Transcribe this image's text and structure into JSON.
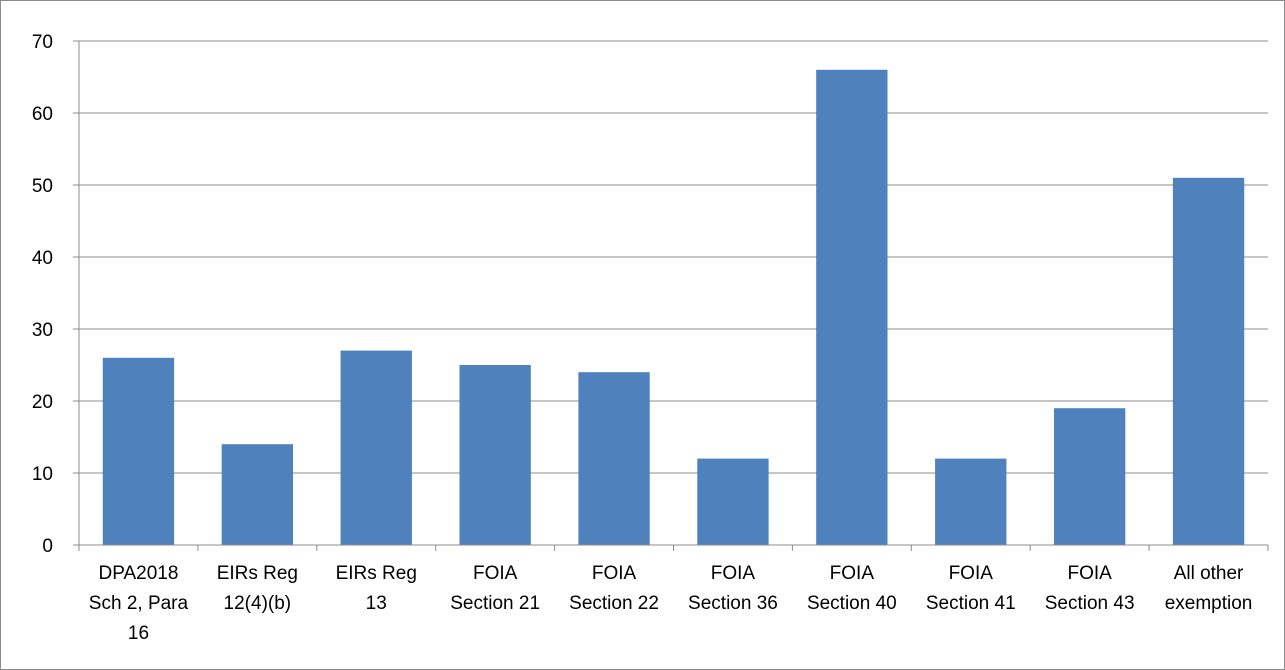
{
  "chart_data": {
    "type": "bar",
    "categories": [
      [
        "DPA2018",
        "Sch 2, Para",
        "16"
      ],
      [
        "EIRs Reg",
        "12(4)(b)"
      ],
      [
        "EIRs Reg",
        "13"
      ],
      [
        "FOIA",
        "Section 21"
      ],
      [
        "FOIA",
        "Section 22"
      ],
      [
        "FOIA",
        "Section 36"
      ],
      [
        "FOIA",
        "Section 40"
      ],
      [
        "FOIA",
        "Section 41"
      ],
      [
        "FOIA",
        "Section 43"
      ],
      [
        "All other",
        "exemption"
      ]
    ],
    "values": [
      26,
      14,
      27,
      25,
      24,
      12,
      66,
      12,
      19,
      51
    ],
    "ylim": [
      0,
      70
    ],
    "yticks": [
      0,
      10,
      20,
      30,
      40,
      50,
      60,
      70
    ],
    "bar_color": "#4f81bd",
    "grid": true,
    "legend": "none",
    "title": "",
    "xlabel": "",
    "ylabel": ""
  }
}
